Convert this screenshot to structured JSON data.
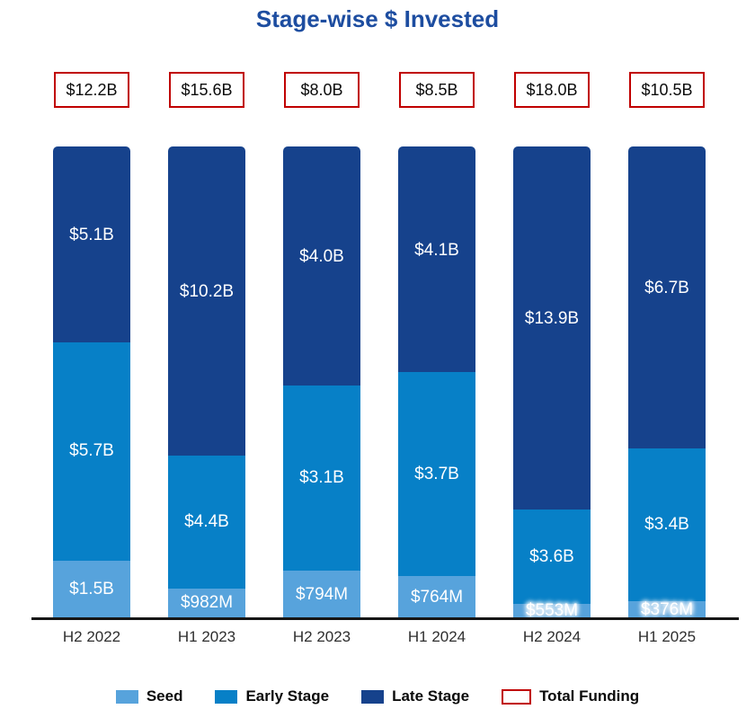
{
  "title": "Stage-wise $ Invested",
  "colors": {
    "seed": "#57a3dc",
    "early_stage": "#0780c7",
    "late_stage": "#16428c",
    "total_funding_border": "#c00000",
    "title_text": "#1d4da0",
    "axis_line": "#161616",
    "axis_label_text": "#2e2e2e",
    "segment_label_text": "#ffffff"
  },
  "chart_data": {
    "type": "bar",
    "stacked": true,
    "normalized_height": "100%",
    "title": "Stage-wise $ Invested",
    "xlabel": "",
    "ylabel": "",
    "units": "USD invested",
    "grid": false,
    "legend_position": "bottom",
    "categories": [
      "H2 2022",
      "H1 2023",
      "H2 2023",
      "H1 2024",
      "H2 2024",
      "H1 2025"
    ],
    "totals": {
      "name": "Total Funding",
      "values_usd_billions": [
        12.2,
        15.6,
        8.0,
        8.5,
        18.0,
        10.5
      ],
      "labels": [
        "$12.2B",
        "$15.6B",
        "$8.0B",
        "$8.5B",
        "$18.0B",
        "$10.5B"
      ]
    },
    "series": [
      {
        "name": "Seed",
        "color": "#57a3dc",
        "values_usd_billions": [
          1.5,
          0.982,
          0.794,
          0.764,
          0.553,
          0.376
        ],
        "labels": [
          "$1.5B",
          "$982M",
          "$794M",
          "$764M",
          "$553M",
          "$376M"
        ]
      },
      {
        "name": "Early Stage",
        "color": "#0780c7",
        "values_usd_billions": [
          5.7,
          4.4,
          3.1,
          3.7,
          3.6,
          3.4
        ],
        "labels": [
          "$5.7B",
          "$4.4B",
          "$3.1B",
          "$3.7B",
          "$3.6B",
          "$3.4B"
        ]
      },
      {
        "name": "Late Stage",
        "color": "#16428c",
        "values_usd_billions": [
          5.1,
          10.2,
          4.0,
          4.1,
          13.9,
          6.7
        ],
        "labels": [
          "$5.1B",
          "$10.2B",
          "$4.0B",
          "$4.1B",
          "$13.9B",
          "$6.7B"
        ]
      }
    ],
    "legend": [
      {
        "name": "Seed",
        "swatch": "fill",
        "color": "#57a3dc"
      },
      {
        "name": "Early Stage",
        "swatch": "fill",
        "color": "#0780c7"
      },
      {
        "name": "Late Stage",
        "swatch": "fill",
        "color": "#16428c"
      },
      {
        "name": "Total Funding",
        "swatch": "outline",
        "color": "#c00000"
      }
    ]
  }
}
